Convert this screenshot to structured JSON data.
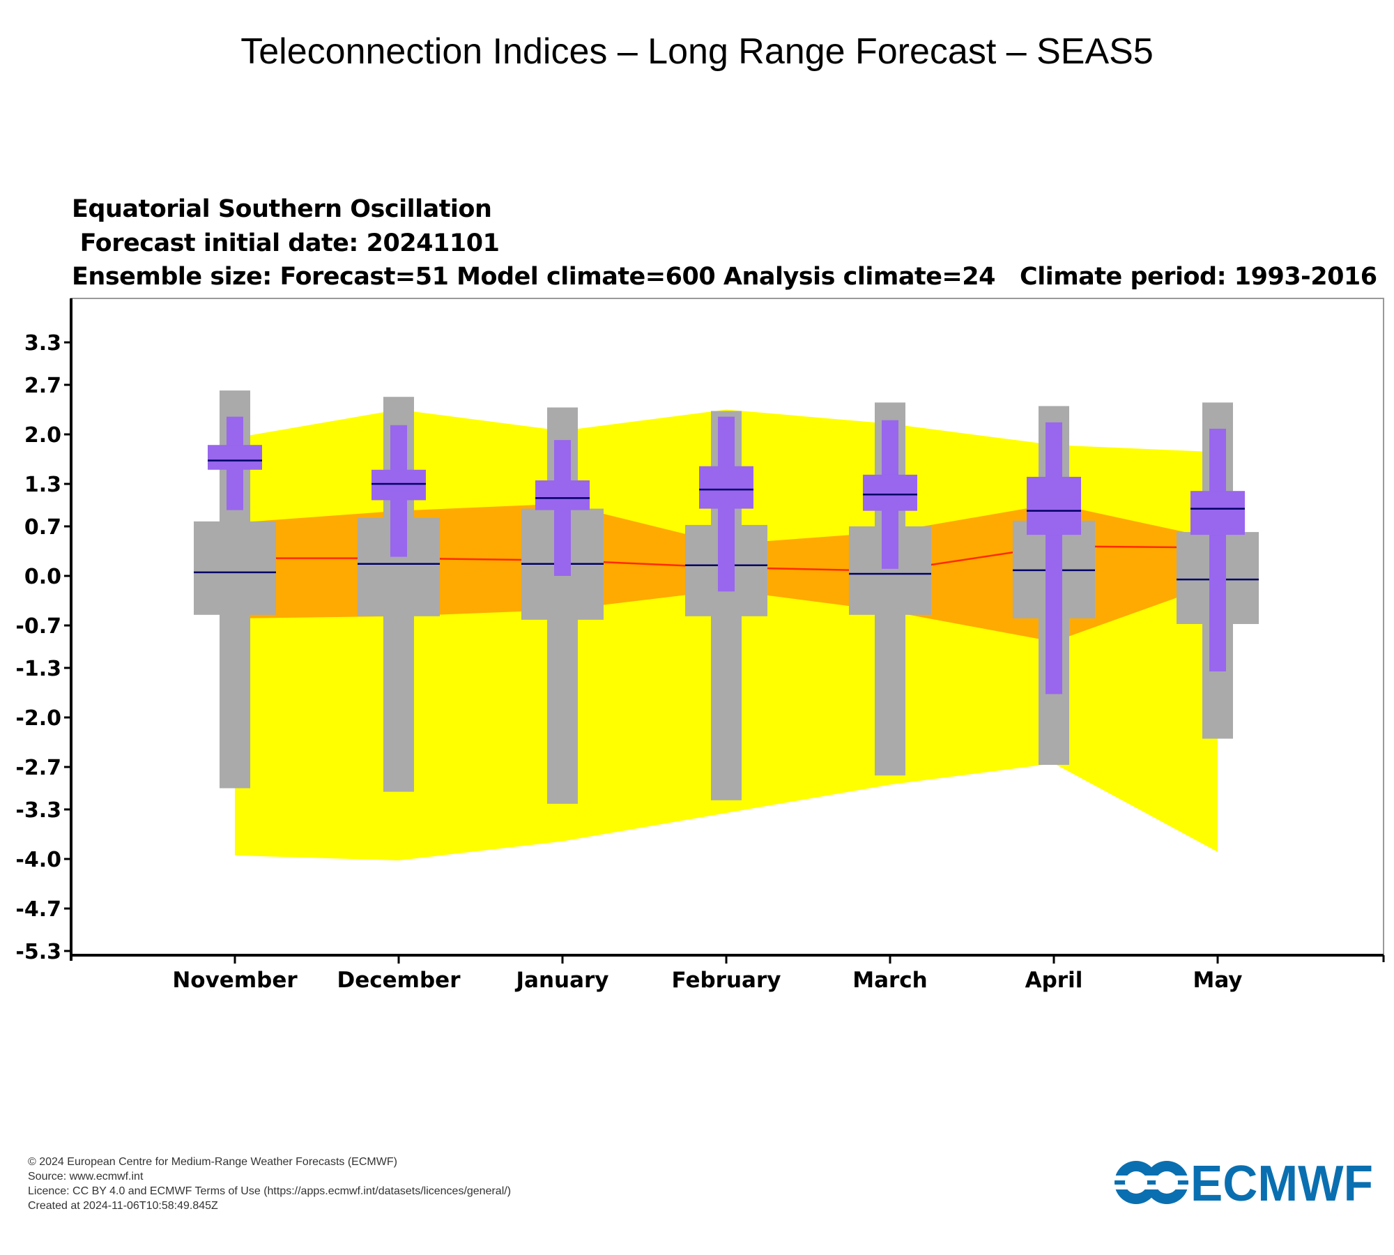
{
  "page_title": "Teleconnection Indices – Long Range Forecast – SEAS5",
  "subtitles": [
    "Equatorial Southern Oscillation",
    " Forecast initial date: 20241101",
    "Ensemble size: Forecast=51 Model climate=600 Analysis climate=24   Climate period: 1993-2016"
  ],
  "footer": {
    "copyright": "© 2024 European Centre for Medium-Range Weather Forecasts (ECMWF)",
    "source": "Source: www.ecmwf.int",
    "licence": "Licence: CC BY 4.0 and ECMWF Terms of Use (https://apps.ecmwf.int/datasets/licences/general/)",
    "created": "Created at 2024-11-06T10:58:49.845Z"
  },
  "logo": {
    "text": "ECMWF",
    "color": "#0a6fb0"
  },
  "chart_data": {
    "type": "box",
    "categories": [
      "November",
      "December",
      "January",
      "February",
      "March",
      "April",
      "May"
    ],
    "ylim": [
      -5.4,
      3.95
    ],
    "yticks": [
      3.3,
      2.7,
      2.0,
      1.3,
      0.7,
      0.0,
      -0.7,
      -1.3,
      -2.0,
      -2.7,
      -3.3,
      -4.0,
      -4.7,
      -5.3
    ],
    "ytick_labels": [
      "3.3",
      "2.7",
      "2.0",
      "1.3",
      "0.7",
      "0.0",
      "-0.7",
      "-1.3",
      "-2.0",
      "-2.7",
      "-3.3",
      "-4.0",
      "-4.7",
      "-5.3"
    ],
    "colors": {
      "analysis_range": "#ffff00",
      "analysis_iqr": "#ffaa00",
      "analysis_median": "#ff2a00",
      "model_climate": "#aaaaaa",
      "forecast": "#9966ee",
      "median_line": "#000066"
    },
    "analysis_climate": {
      "min": [
        -3.95,
        -4.02,
        -3.75,
        -3.35,
        -2.95,
        -2.65,
        -3.9
      ],
      "max": [
        1.95,
        2.35,
        2.05,
        2.35,
        2.15,
        1.85,
        1.75
      ],
      "q25": [
        -0.6,
        -0.57,
        -0.48,
        -0.2,
        -0.5,
        -0.93,
        -0.1
      ],
      "q75": [
        0.75,
        0.92,
        1.02,
        0.45,
        0.62,
        1.02,
        0.52
      ],
      "median": [
        0.25,
        0.25,
        0.22,
        0.12,
        0.07,
        0.42,
        0.4
      ]
    },
    "model_climate": {
      "min": [
        -3.0,
        -3.05,
        -3.22,
        -3.17,
        -2.82,
        -2.67,
        -2.3
      ],
      "max": [
        2.62,
        2.53,
        2.38,
        2.33,
        2.45,
        2.4,
        2.45
      ],
      "q25": [
        -0.55,
        -0.57,
        -0.62,
        -0.57,
        -0.55,
        -0.6,
        -0.68
      ],
      "q75": [
        0.77,
        0.82,
        0.95,
        0.72,
        0.7,
        0.78,
        0.62
      ],
      "median": [
        0.05,
        0.17,
        0.17,
        0.15,
        0.03,
        0.08,
        -0.05
      ]
    },
    "forecast": {
      "min": [
        0.93,
        0.27,
        0.0,
        -0.22,
        0.1,
        -1.67,
        -1.35
      ],
      "max": [
        2.25,
        2.13,
        1.92,
        2.25,
        2.2,
        2.17,
        2.08
      ],
      "q25": [
        1.5,
        1.07,
        0.93,
        0.95,
        0.92,
        0.58,
        0.58
      ],
      "q75": [
        1.85,
        1.5,
        1.35,
        1.55,
        1.43,
        1.4,
        1.2
      ],
      "median": [
        1.63,
        1.3,
        1.1,
        1.22,
        1.15,
        0.92,
        0.95
      ]
    }
  }
}
